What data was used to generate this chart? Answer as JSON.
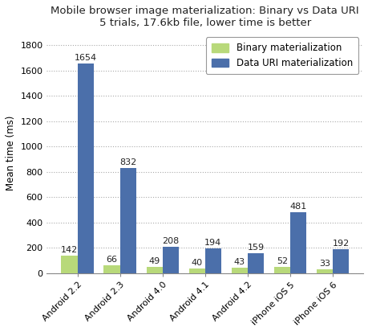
{
  "title_line1": "Mobile browser image materialization: Binary vs Data URI",
  "title_line2": "5 trials, 17.6kb file, lower time is better",
  "categories": [
    "Android 2.2",
    "Android 2.3",
    "Android 4.0",
    "Android 4.1",
    "Android 4.2",
    "iPhone iOS 5",
    "iPhone iOS 6"
  ],
  "binary_values": [
    142,
    66,
    49,
    40,
    43,
    52,
    33
  ],
  "datauri_values": [
    1654,
    832,
    208,
    194,
    159,
    481,
    192
  ],
  "binary_color": "#b8d97a",
  "datauri_color": "#4b6faa",
  "ylabel": "Mean time (ms)",
  "ylim": [
    0,
    1900
  ],
  "yticks": [
    0,
    200,
    400,
    600,
    800,
    1000,
    1200,
    1400,
    1600,
    1800
  ],
  "legend_binary": "Binary materialization",
  "legend_datauri": "Data URI materialization",
  "bg_color": "#ffffff",
  "plot_bg_color": "#ffffff",
  "grid_color": "#aaaaaa",
  "title_fontsize": 9.5,
  "label_fontsize": 8.5,
  "tick_fontsize": 8.0,
  "value_fontsize": 8.0,
  "bar_width": 0.38,
  "legend_fontsize": 8.5
}
